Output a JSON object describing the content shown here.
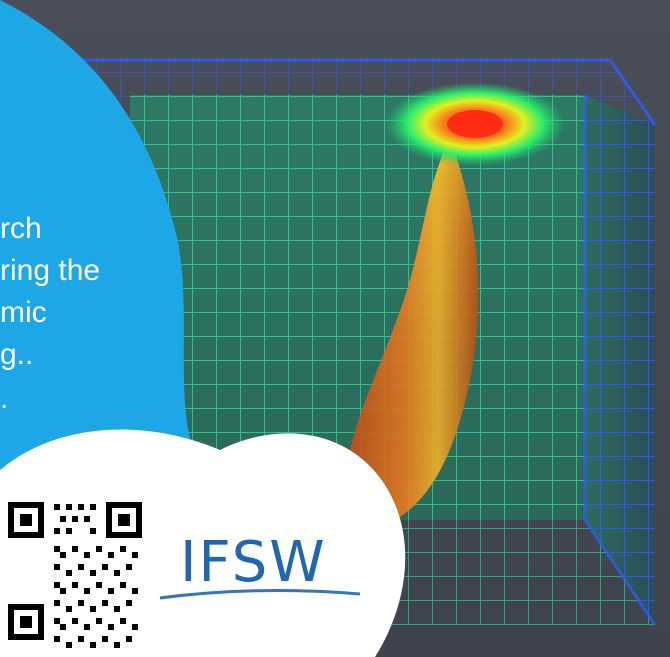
{
  "caption": {
    "lines": [
      "rch",
      "ring the",
      "mic",
      "g..",
      "."
    ]
  },
  "logo": {
    "text": "IFSW"
  },
  "colors": {
    "background_panel": "#4a4e59",
    "blue_blob": "#1ea7e6",
    "grid_green": "#35e0a0",
    "grid_blue": "#2f5cff",
    "melt_core": "#ff2a12",
    "melt_orange": "#f06a24",
    "melt_yellow": "#f0c22a",
    "logo_blue": "#1f66b3"
  },
  "icons": {
    "qr": "qr-code-icon",
    "logo": "ifsw-logo-icon"
  }
}
